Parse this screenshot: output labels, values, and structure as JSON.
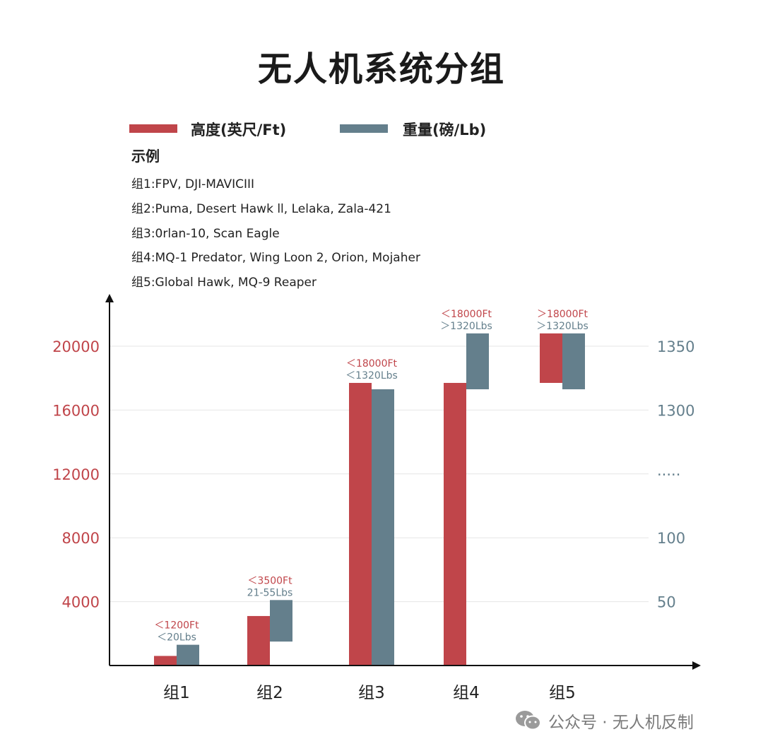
{
  "title": "无人机系统分组",
  "legend": [
    {
      "label": "高度(英尺/Ft)",
      "color": "#c0454a"
    },
    {
      "label": "重量(磅/Lb)",
      "color": "#647f8c"
    }
  ],
  "examples": {
    "heading": "示例",
    "items": [
      "组1:FPV, DJI-MAVICIII",
      "组2:Puma, Desert Hawk ll, Lelaka, Zala-421",
      "组3:0rlan-10, Scan Eagle",
      "组4:MQ-1 Predator, Wing Loon 2, Orion, Mojaher",
      "组5:Global Hawk, MQ-9 Reaper"
    ]
  },
  "chart_data": {
    "type": "bar",
    "categories": [
      "组1",
      "组2",
      "组3",
      "组4",
      "组5"
    ],
    "left_axis": {
      "ticks": [
        "20000",
        "16000",
        "12000",
        "8000",
        "4000"
      ],
      "values": [
        20000,
        16000,
        12000,
        8000,
        4000
      ],
      "color": "#c0454a"
    },
    "right_axis": {
      "ticks": [
        "1350",
        "1300",
        "·····",
        "100",
        "50"
      ],
      "color": "#647f8c"
    },
    "series": [
      {
        "name": "高度(英尺/Ft)",
        "color": "#c0454a",
        "ranges": [
          [
            0,
            600
          ],
          [
            0,
            3100
          ],
          [
            0,
            17700
          ],
          [
            0,
            17700
          ],
          [
            17700,
            20800
          ]
        ]
      },
      {
        "name": "重量(磅/Lb)",
        "color": "#647f8c",
        "ranges": [
          [
            0,
            1300
          ],
          [
            1500,
            4100
          ],
          [
            0,
            17300
          ],
          [
            17300,
            20800
          ],
          [
            17300,
            20800
          ]
        ]
      }
    ],
    "annotations": [
      {
        "height": "＜1200Ft",
        "weight": "＜20Lbs"
      },
      {
        "height": "＜3500Ft",
        "weight": "21-55Lbs"
      },
      {
        "height": "＜18000Ft",
        "weight": "＜1320Lbs"
      },
      {
        "height": "＜18000Ft",
        "weight": "＞1320Lbs"
      },
      {
        "height": "＞18000Ft",
        "weight": "＞1320Lbs"
      }
    ],
    "grid": true
  },
  "watermark": "公众号 · 无人机反制"
}
